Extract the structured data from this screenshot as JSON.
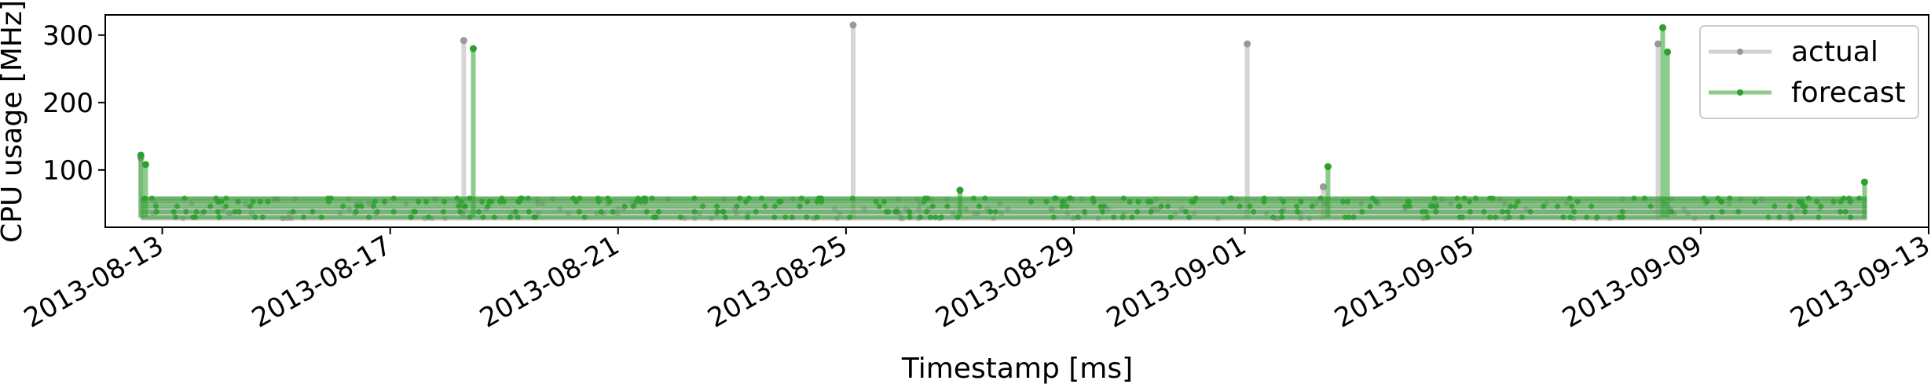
{
  "chart_data": {
    "type": "line",
    "xlabel": "Timestamp [ms]",
    "ylabel": "CPU usage [MHz]",
    "xlim": [
      "2013-08-12T00:00",
      "2013-09-13T00:00"
    ],
    "ylim": [
      15,
      330
    ],
    "grid": false,
    "legend_position": "top-right",
    "x_ticks": [
      "2013-08-13",
      "2013-08-17",
      "2013-08-21",
      "2013-08-25",
      "2013-08-29",
      "2013-09-01",
      "2013-09-05",
      "2013-09-09",
      "2013-09-13"
    ],
    "y_ticks": [
      100,
      200,
      300
    ],
    "levels": {
      "actual": [
        28,
        35,
        42,
        50,
        57
      ],
      "forecast": [
        30,
        38,
        46,
        53,
        58
      ]
    },
    "series": [
      {
        "name": "actual",
        "color": "#999999",
        "marker": "point",
        "spikes": [
          {
            "x": "2013-08-12T15:00",
            "y": 118
          },
          {
            "x": "2013-08-18T07:00",
            "y": 292
          },
          {
            "x": "2013-08-25T03:00",
            "y": 315
          },
          {
            "x": "2013-09-01T01:00",
            "y": 287
          },
          {
            "x": "2013-09-02T09:00",
            "y": 75
          },
          {
            "x": "2013-09-08T06:00",
            "y": 287
          }
        ]
      },
      {
        "name": "forecast",
        "color": "#2ca02c",
        "marker": "point",
        "spikes": [
          {
            "x": "2013-08-12T15:00",
            "y": 122
          },
          {
            "x": "2013-08-12T17:00",
            "y": 108
          },
          {
            "x": "2013-08-18T11:00",
            "y": 280
          },
          {
            "x": "2013-08-27T00:00",
            "y": 70
          },
          {
            "x": "2013-09-02T11:00",
            "y": 105
          },
          {
            "x": "2013-09-08T08:00",
            "y": 311
          },
          {
            "x": "2013-09-08T10:00",
            "y": 275
          },
          {
            "x": "2013-09-11T21:00",
            "y": 82
          }
        ]
      }
    ]
  }
}
